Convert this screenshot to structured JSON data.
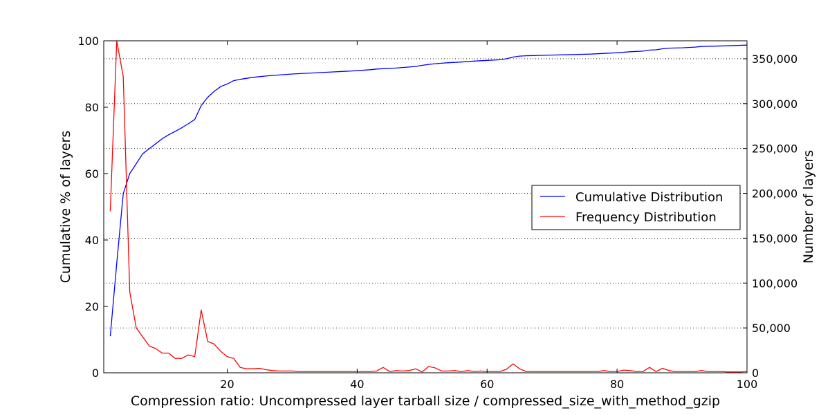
{
  "chart_data": {
    "type": "line",
    "xlabel": "Compression ratio: Uncompressed layer tarball size / compressed_size_with_method_gzip",
    "ylabel_left": "Cumulative % of layers",
    "ylabel_right": "Number of layers",
    "xlim": [
      1,
      100
    ],
    "ylim_left": [
      0,
      100
    ],
    "ylim_right": [
      0,
      370000
    ],
    "x_ticks": [
      "20",
      "40",
      "60",
      "80",
      "100"
    ],
    "y_ticks_left": [
      "0",
      "20",
      "40",
      "60",
      "80",
      "100"
    ],
    "y_ticks_right": [
      "0",
      "50,000",
      "100,000",
      "150,000",
      "200,000",
      "250,000",
      "300,000",
      "350,000"
    ],
    "grid": "horizontal dotted",
    "legend_position": "center-right",
    "series": [
      {
        "name": "Cumulative Distribution",
        "color": "#0000ff",
        "axis": "left",
        "x": [
          2,
          3,
          4,
          5,
          6,
          7,
          8,
          9,
          10,
          11,
          12,
          13,
          14,
          15,
          16,
          17,
          18,
          19,
          20,
          21,
          22,
          23,
          24,
          25,
          26,
          28,
          30,
          32,
          34,
          36,
          38,
          40,
          42,
          43,
          44,
          46,
          48,
          49,
          50,
          51,
          52,
          54,
          56,
          58,
          60,
          62,
          63,
          64,
          65,
          66,
          68,
          70,
          72,
          74,
          76,
          78,
          80,
          82,
          84,
          85,
          86,
          87,
          88,
          90,
          92,
          93,
          95,
          97,
          100
        ],
        "y": [
          11,
          33,
          54,
          60,
          63,
          66,
          67.5,
          69,
          70.5,
          71.7,
          72.7,
          73.8,
          75,
          76.3,
          80.5,
          83,
          84.8,
          86.2,
          87,
          88,
          88.4,
          88.7,
          89,
          89.2,
          89.4,
          89.7,
          90,
          90.2,
          90.4,
          90.6,
          90.8,
          91,
          91.3,
          91.5,
          91.6,
          91.8,
          92.1,
          92.3,
          92.6,
          92.9,
          93.1,
          93.4,
          93.6,
          93.9,
          94.1,
          94.3,
          94.6,
          95.1,
          95.4,
          95.5,
          95.6,
          95.7,
          95.8,
          95.9,
          96,
          96.2,
          96.4,
          96.7,
          96.9,
          97.2,
          97.3,
          97.6,
          97.8,
          97.9,
          98.1,
          98.3,
          98.4,
          98.5,
          98.7
        ]
      },
      {
        "name": "Frequency Distribution",
        "color": "#ff0000",
        "axis": "right",
        "x": [
          2,
          3,
          4,
          5,
          6,
          7,
          8,
          9,
          10,
          11,
          12,
          13,
          14,
          15,
          16,
          17,
          18,
          19,
          20,
          21,
          22,
          23,
          24,
          25,
          26,
          27,
          28,
          29,
          30,
          31,
          32,
          33,
          34,
          35,
          36,
          37,
          38,
          39,
          40,
          41,
          42,
          43,
          44,
          45,
          46,
          47,
          48,
          49,
          50,
          51,
          52,
          53,
          54,
          55,
          56,
          57,
          58,
          59,
          60,
          61,
          62,
          63,
          64,
          65,
          66,
          67,
          68,
          69,
          70,
          71,
          72,
          73,
          74,
          75,
          76,
          77,
          78,
          79,
          80,
          81,
          82,
          83,
          84,
          85,
          86,
          87,
          88,
          89,
          90,
          91,
          92,
          93,
          94,
          95,
          96,
          97,
          98,
          99,
          100
        ],
        "y": [
          180000,
          370000,
          330000,
          90000,
          50000,
          40000,
          30000,
          27000,
          22000,
          22000,
          16000,
          16000,
          20000,
          18000,
          70000,
          35000,
          32000,
          24000,
          18000,
          16000,
          6000,
          4500,
          4500,
          5000,
          3500,
          2500,
          2000,
          2000,
          2000,
          1500,
          1500,
          1500,
          1500,
          1500,
          1500,
          1500,
          1500,
          1500,
          1500,
          1500,
          1500,
          2000,
          6000,
          1500,
          2500,
          2000,
          2500,
          4500,
          1000,
          7000,
          5500,
          2000,
          2000,
          2500,
          1500,
          2500,
          1500,
          2000,
          1500,
          1500,
          1500,
          4000,
          10000,
          4500,
          1500,
          1500,
          1500,
          1500,
          1500,
          1500,
          1500,
          1500,
          1500,
          1500,
          1500,
          1500,
          2500,
          1500,
          1500,
          3000,
          2500,
          1500,
          1500,
          6000,
          1500,
          5000,
          2500,
          1500,
          1500,
          1500,
          1500,
          2500,
          1500,
          1500,
          1500,
          1000,
          1000,
          1000,
          1500
        ]
      }
    ]
  }
}
